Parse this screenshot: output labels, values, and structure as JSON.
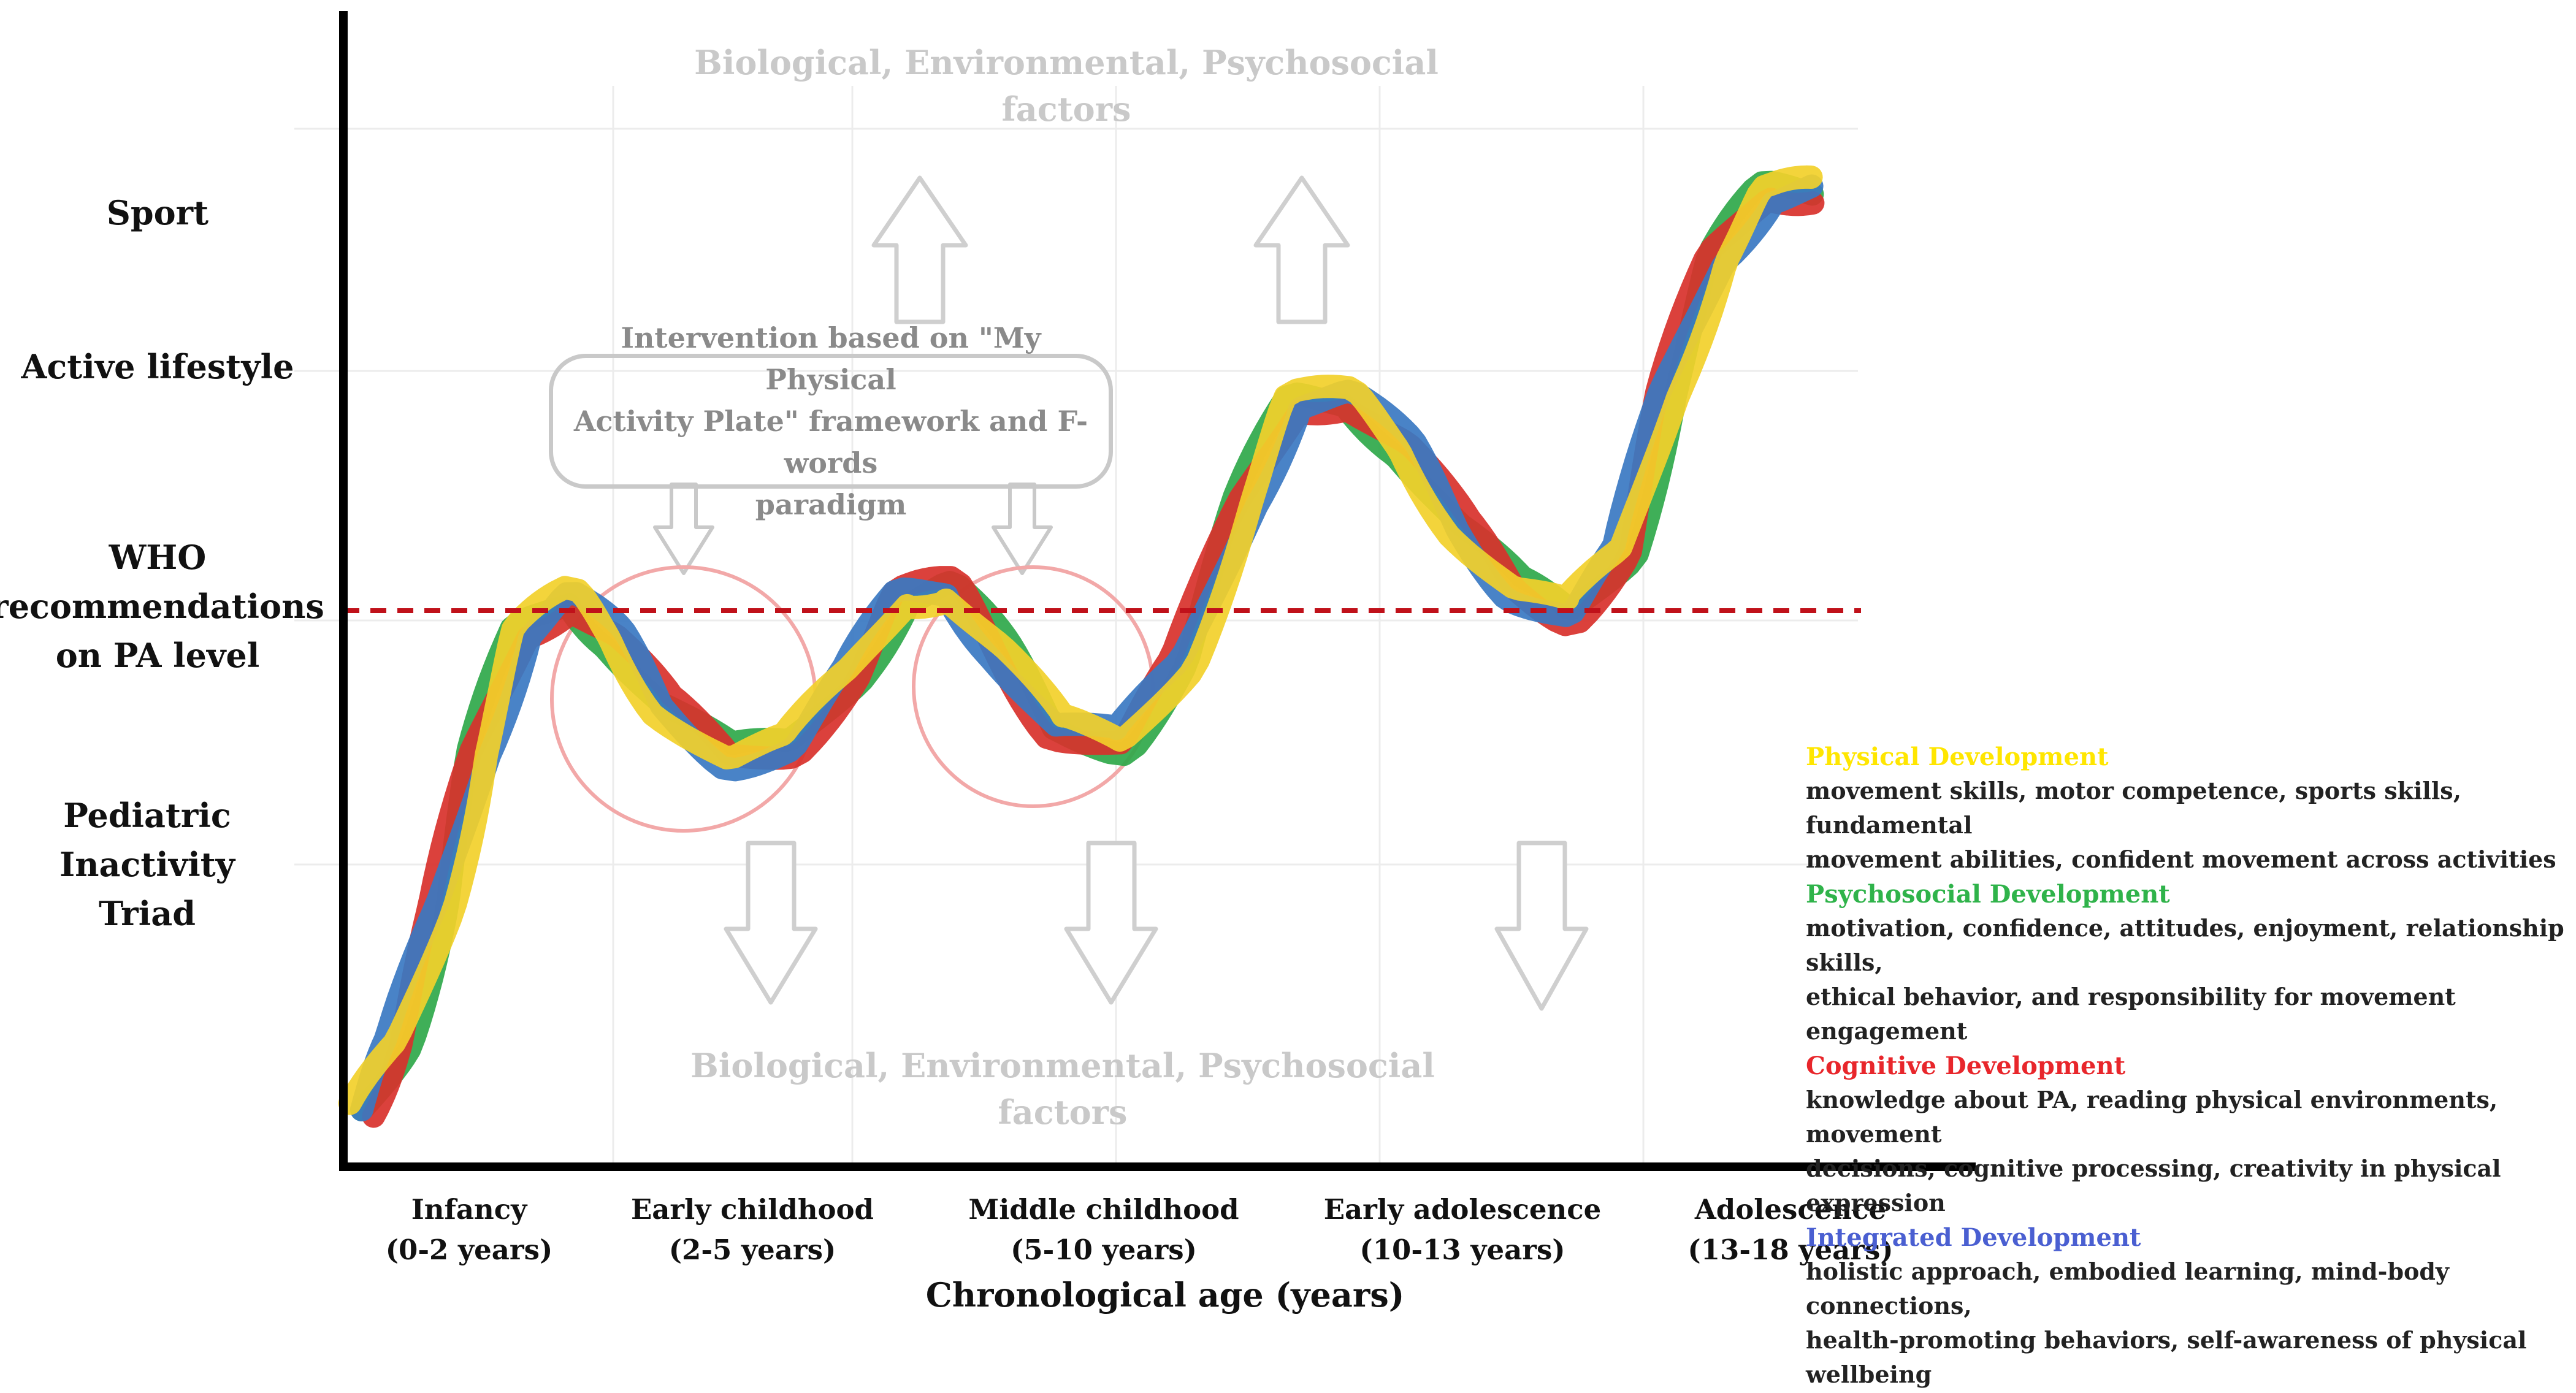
{
  "y_levels": [
    {
      "id": "sport",
      "label": "Sport"
    },
    {
      "id": "active-lifestyle",
      "label": "Active lifestyle"
    },
    {
      "id": "who",
      "label": "WHO\nrecommendations\non PA level"
    },
    {
      "id": "pit",
      "label": "Pediatric\nInactivity\nTriad"
    }
  ],
  "x_categories": [
    "Infancy\n(0-2 years)",
    "Early childhood\n(2-5 years)",
    "Middle childhood\n(5-10 years)",
    "Early adolescence\n(10-13 years)",
    "Adolescence\n(13-18 years)"
  ],
  "x_axis_title": "Chronological age (years)",
  "factors_label": "Biological, Environmental, Psychosocial\nfactors",
  "intervention_label": "Intervention based on \"My Physical\nActivity Plate\" framework and F-words\nparadigm",
  "legend": [
    {
      "title": "Physical Development",
      "color": "#ffe600",
      "desc": "movement skills, motor competence, sports skills, fundamental\nmovement abilities, confident movement across activities"
    },
    {
      "title": "Psychosocial Development",
      "color": "#2fb34a",
      "desc": "motivation, confidence, attitudes, enjoyment, relationship skills,\nethical behavior, and responsibility for movement engagement"
    },
    {
      "title": "Cognitive Development",
      "color": "#e8262b",
      "desc": "knowledge about PA, reading physical environments, movement\ndecisions, cognitive processing, creativity in physical expression"
    },
    {
      "title": "Integrated Development",
      "color": "#4a5fd1",
      "desc": "holistic approach, embodied learning, mind-body connections,\nhealth-promoting behaviors, self-awareness of physical wellbeing"
    }
  ],
  "colors": {
    "axis": "#000000",
    "who_line": "#c0111a",
    "faded": "#cfcfcf",
    "circle": "#f2a8a8",
    "strand_yellow": "#f2d02a",
    "strand_green": "#2fa84a",
    "strand_red": "#d8312b",
    "strand_blue": "#3a78c2"
  }
}
